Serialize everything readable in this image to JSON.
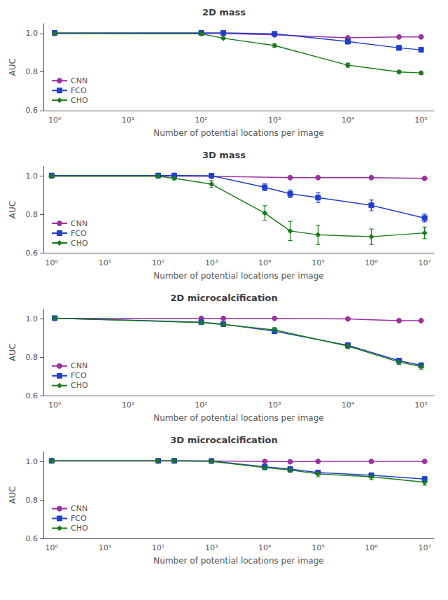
{
  "chart_data": [
    {
      "type": "line",
      "title": "2D mass",
      "xlabel": "Number of potential locations per image",
      "ylabel": "AUC",
      "log": "x",
      "grid": false,
      "legend": "lower left",
      "xlim": [
        0.7,
        150000
      ],
      "xticks": [
        {
          "value": 1,
          "label": "10⁰"
        },
        {
          "value": 10,
          "label": "10¹"
        },
        {
          "value": 100,
          "label": "10²"
        },
        {
          "value": 1000,
          "label": "10³"
        },
        {
          "value": 10000,
          "label": "10⁴"
        },
        {
          "value": 100000,
          "label": "10⁵"
        }
      ],
      "ylim": [
        0.6,
        1.05
      ],
      "yticks": [
        0.6,
        0.8,
        {
          "value": 1.0,
          "label": "1.0"
        }
      ],
      "series": [
        {
          "name": "CNN",
          "color": "#9b30a0",
          "marker": "circle",
          "x": [
            1,
            100,
            200,
            1000,
            10000,
            50000,
            100000
          ],
          "values": [
            1.0,
            1.0,
            1.0,
            0.993,
            0.977,
            0.982,
            0.982
          ],
          "yerr": [
            0.0,
            0.0,
            0.0,
            0.003,
            0.005,
            0.004,
            0.004
          ]
        },
        {
          "name": "FCO",
          "color": "#1f3fcc",
          "marker": "square",
          "x": [
            1,
            100,
            200,
            1000,
            10000,
            50000,
            100000
          ],
          "values": [
            1.003,
            1.003,
            1.003,
            0.998,
            0.958,
            0.925,
            0.915
          ],
          "yerr": [
            0.0,
            0.004,
            0.004,
            0.006,
            0.012,
            0.012,
            0.012
          ]
        },
        {
          "name": "CHO",
          "color": "#1a7a1a",
          "marker": "diamond",
          "x": [
            1,
            100,
            200,
            1000,
            10000,
            50000,
            100000
          ],
          "values": [
            1.0,
            0.998,
            0.975,
            0.937,
            0.835,
            0.8,
            0.795
          ],
          "yerr": [
            0.0,
            0.003,
            0.005,
            0.008,
            0.01,
            0.008,
            0.008
          ]
        }
      ]
    },
    {
      "type": "line",
      "title": "3D mass",
      "xlabel": "Number of potential locations per image",
      "ylabel": "AUC",
      "log": "x",
      "grid": false,
      "legend": "lower left",
      "xlim": [
        0.7,
        15000000
      ],
      "xticks": [
        {
          "value": 1,
          "label": "10⁰"
        },
        {
          "value": 10,
          "label": "10¹"
        },
        {
          "value": 100,
          "label": "10²"
        },
        {
          "value": 1000,
          "label": "10³"
        },
        {
          "value": 10000,
          "label": "10⁴"
        },
        {
          "value": 100000,
          "label": "10⁵"
        },
        {
          "value": 1000000,
          "label": "10⁶"
        },
        {
          "value": 10000000,
          "label": "10⁷"
        }
      ],
      "ylim": [
        0.6,
        1.05
      ],
      "yticks": [
        0.6,
        0.8,
        {
          "value": 1.0,
          "label": "1.0"
        }
      ],
      "series": [
        {
          "name": "CNN",
          "color": "#9b30a0",
          "marker": "circle",
          "x": [
            1,
            100,
            200,
            1000,
            30000,
            100000,
            1000000,
            10000000
          ],
          "values": [
            1.0,
            1.0,
            1.0,
            0.999,
            0.992,
            0.992,
            0.992,
            0.988
          ],
          "yerr": [
            0.0,
            0.0,
            0.0,
            0.002,
            0.003,
            0.003,
            0.003,
            0.004
          ]
        },
        {
          "name": "FCO",
          "color": "#1f3fcc",
          "marker": "square",
          "x": [
            1,
            100,
            200,
            1000,
            10000,
            30000,
            100000,
            1000000,
            10000000
          ],
          "values": [
            1.003,
            1.003,
            1.003,
            1.002,
            0.942,
            0.908,
            0.888,
            0.848,
            0.782
          ],
          "yerr": [
            0.0,
            0.004,
            0.004,
            0.006,
            0.018,
            0.02,
            0.025,
            0.028,
            0.02
          ]
        },
        {
          "name": "CHO",
          "color": "#1a7a1a",
          "marker": "diamond",
          "x": [
            1,
            100,
            200,
            1000,
            10000,
            30000,
            100000,
            1000000,
            10000000
          ],
          "values": [
            1.0,
            1.0,
            0.988,
            0.958,
            0.808,
            0.715,
            0.695,
            0.685,
            0.705
          ],
          "yerr": [
            0.0,
            0.003,
            0.007,
            0.018,
            0.038,
            0.05,
            0.05,
            0.04,
            0.03
          ]
        }
      ]
    },
    {
      "type": "line",
      "title": "2D microcalcification",
      "xlabel": "Number of potential locations per image",
      "ylabel": "AUC",
      "log": "x",
      "grid": false,
      "legend": "lower left",
      "xlim": [
        0.7,
        150000
      ],
      "xticks": [
        {
          "value": 1,
          "label": "10⁰"
        },
        {
          "value": 10,
          "label": "10¹"
        },
        {
          "value": 100,
          "label": "10²"
        },
        {
          "value": 1000,
          "label": "10³"
        },
        {
          "value": 10000,
          "label": "10⁴"
        },
        {
          "value": 100000,
          "label": "10⁵"
        }
      ],
      "ylim": [
        0.6,
        1.05
      ],
      "yticks": [
        0.6,
        0.8,
        {
          "value": 1.0,
          "label": "1.0"
        }
      ],
      "series": [
        {
          "name": "CNN",
          "color": "#9b30a0",
          "marker": "circle",
          "x": [
            1,
            100,
            200,
            1000,
            10000,
            50000,
            100000
          ],
          "values": [
            1.002,
            1.002,
            1.002,
            1.002,
            0.999,
            0.99,
            0.99
          ],
          "yerr": [
            0.0,
            0.0,
            0.0,
            0.002,
            0.002,
            0.003,
            0.003
          ]
        },
        {
          "name": "FCO",
          "color": "#1f3fcc",
          "marker": "square",
          "x": [
            1,
            100,
            200,
            1000,
            10000,
            50000,
            100000
          ],
          "values": [
            1.003,
            0.982,
            0.972,
            0.935,
            0.862,
            0.782,
            0.758
          ],
          "yerr": [
            0.0,
            0.008,
            0.01,
            0.012,
            0.013,
            0.013,
            0.013
          ]
        },
        {
          "name": "CHO",
          "color": "#1a7a1a",
          "marker": "diamond",
          "x": [
            1,
            100,
            200,
            1000,
            10000,
            50000,
            100000
          ],
          "values": [
            1.003,
            0.98,
            0.97,
            0.942,
            0.858,
            0.775,
            0.752
          ],
          "yerr": [
            0.0,
            0.007,
            0.008,
            0.012,
            0.013,
            0.013,
            0.013
          ]
        }
      ]
    },
    {
      "type": "line",
      "title": "3D microcalcification",
      "xlabel": "Number of potential locations per image",
      "ylabel": "AUC",
      "log": "x",
      "grid": false,
      "legend": "lower left",
      "xlim": [
        0.7,
        15000000
      ],
      "xticks": [
        {
          "value": 1,
          "label": "10⁰"
        },
        {
          "value": 10,
          "label": "10¹"
        },
        {
          "value": 100,
          "label": "10²"
        },
        {
          "value": 1000,
          "label": "10³"
        },
        {
          "value": 10000,
          "label": "10⁴"
        },
        {
          "value": 100000,
          "label": "10⁵"
        },
        {
          "value": 1000000,
          "label": "10⁶"
        },
        {
          "value": 10000000,
          "label": "10⁷"
        }
      ],
      "ylim": [
        0.6,
        1.05
      ],
      "yticks": [
        0.6,
        0.8,
        {
          "value": 1.0,
          "label": "1.0"
        }
      ],
      "series": [
        {
          "name": "CNN",
          "color": "#9b30a0",
          "marker": "circle",
          "x": [
            1,
            100,
            200,
            1000,
            10000,
            30000,
            100000,
            1000000,
            10000000
          ],
          "values": [
            1.002,
            1.002,
            1.002,
            1.002,
            1.0,
            0.998,
            1.0,
            1.0,
            1.0
          ],
          "yerr": [
            0.0,
            0.001,
            0.001,
            0.001,
            0.003,
            0.003,
            0.002,
            0.002,
            0.002
          ]
        },
        {
          "name": "FCO",
          "color": "#1f3fcc",
          "marker": "square",
          "x": [
            1,
            100,
            200,
            1000,
            10000,
            30000,
            100000,
            1000000,
            10000000
          ],
          "values": [
            1.003,
            1.003,
            1.003,
            1.002,
            0.972,
            0.96,
            0.942,
            0.928,
            0.908
          ],
          "yerr": [
            0.0,
            0.003,
            0.003,
            0.004,
            0.01,
            0.012,
            0.012,
            0.012,
            0.012
          ]
        },
        {
          "name": "CHO",
          "color": "#1a7a1a",
          "marker": "diamond",
          "x": [
            1,
            100,
            200,
            1000,
            10000,
            30000,
            100000,
            1000000,
            10000000
          ],
          "values": [
            1.003,
            1.003,
            1.003,
            1.0,
            0.968,
            0.955,
            0.935,
            0.92,
            0.892
          ],
          "yerr": [
            0.0,
            0.003,
            0.003,
            0.004,
            0.012,
            0.012,
            0.015,
            0.015,
            0.015
          ]
        }
      ]
    }
  ]
}
